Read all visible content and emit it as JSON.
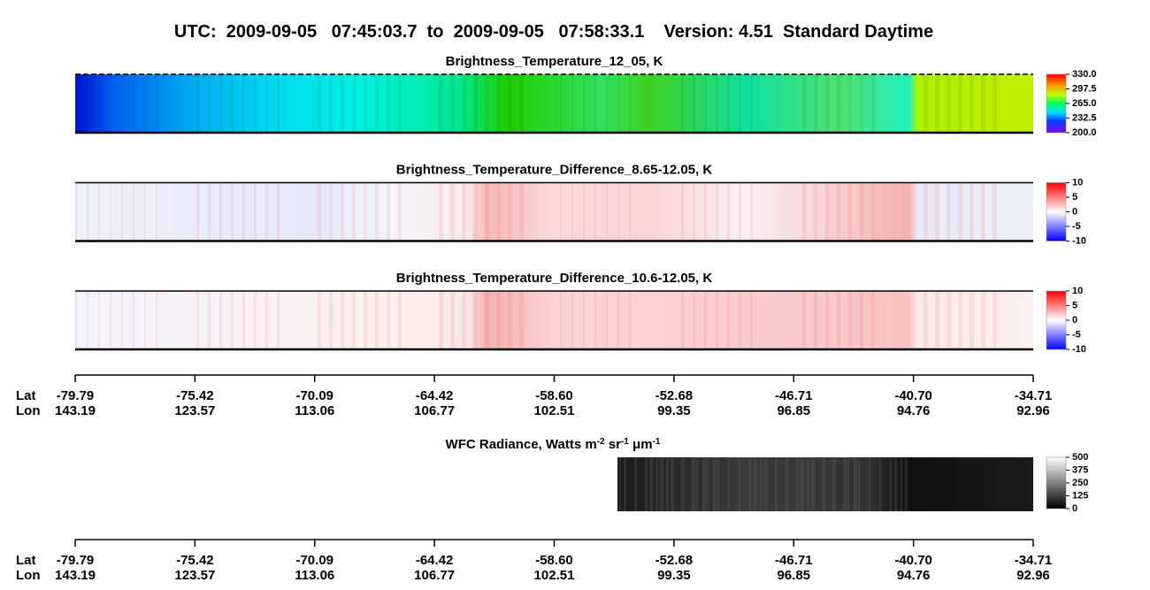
{
  "title": "UTC:  2009-09-05   07:45:03.7  to  2009-09-05   07:58:33.1    Version: 4.51  Standard Daytime",
  "panels": [
    {
      "title": "Brightness_Temperature_12_05, K",
      "colorbar": "rainbow",
      "clim": [
        200,
        330
      ],
      "cticks": [
        {
          "value": 330,
          "label": "330.0"
        },
        {
          "value": 297.5,
          "label": "297.5"
        },
        {
          "value": 265,
          "label": "265.0"
        },
        {
          "value": 232.5,
          "label": "232.5"
        },
        {
          "value": 200,
          "label": "200.0"
        }
      ]
    },
    {
      "title": "Brightness_Temperature_Difference_8.65-12.05, K",
      "colorbar": "bwr",
      "clim": [
        -10,
        10
      ],
      "cticks": [
        10,
        5,
        0,
        -5,
        -10
      ]
    },
    {
      "title": "Brightness_Temperature_Difference_10.6-12.05, K",
      "colorbar": "bwr",
      "clim": [
        -10,
        10
      ],
      "cticks": [
        10,
        5,
        0,
        -5,
        -10
      ]
    }
  ],
  "wfc": {
    "title": [
      "WFC Radiance, Watts m",
      "-2",
      " sr",
      "-1",
      " μm",
      "-1"
    ],
    "colorbar": "gray",
    "clim": [
      0,
      500
    ],
    "cticks": [
      500,
      375,
      250,
      125,
      0
    ]
  },
  "axis": {
    "lat_label": "Lat",
    "lon_label": "Lon",
    "lat": [
      "-79.79",
      "-75.42",
      "-70.09",
      "-64.42",
      "-58.60",
      "-52.68",
      "-46.71",
      "-40.70",
      "-34.71"
    ],
    "lon": [
      "143.19",
      "123.57",
      "113.06",
      "106.77",
      "102.51",
      "99.35",
      "96.85",
      "94.76",
      "92.96"
    ]
  }
}
